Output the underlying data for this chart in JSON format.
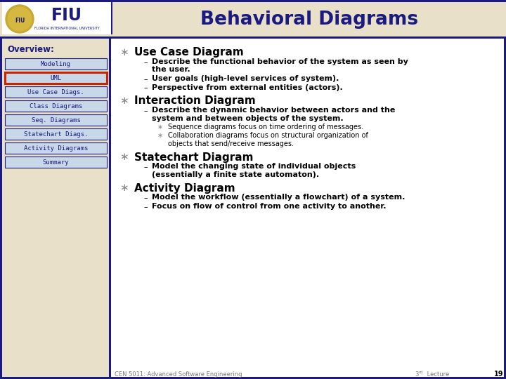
{
  "title": "Behavioral Diagrams",
  "title_color": "#1a1a80",
  "header_bg_color": "#e8e0c8",
  "header_border_color": "#1a1a80",
  "slide_bg_color": "#ffffff",
  "left_panel_bg": "#e8e0c8",
  "left_panel_border": "#1a1a80",
  "overview_label": "Overview:",
  "nav_buttons": [
    "Modeling",
    "UML",
    "Use Case Diags.",
    "Class Diagrams",
    "Seq. Diagrams",
    "Statechart Diags.",
    "Activity Diagrams",
    "Summary"
  ],
  "active_button": "UML",
  "active_button_border": "#cc2200",
  "button_bg_top": "#c8d8e8",
  "button_bg_bot": "#a0b8d0",
  "button_text_color": "#1a1a80",
  "content_bg": "#ffffff",
  "content_sections": [
    {
      "heading": "Use Case Diagram",
      "items": [
        {
          "level": 1,
          "text": "Describe the functional behavior of the system as seen by\nthe user."
        },
        {
          "level": 1,
          "text": "User goals (high-level services of system)."
        },
        {
          "level": 1,
          "text": "Perspective from external entities (actors)."
        }
      ]
    },
    {
      "heading": "Interaction Diagram",
      "items": [
        {
          "level": 1,
          "text": "Describe the dynamic behavior between actors and the\nsystem and between objects of the system."
        },
        {
          "level": 2,
          "text": "Sequence diagrams focus on time ordering of messages."
        },
        {
          "level": 2,
          "text": "Collaboration diagrams focus on structural organization of\nobjects that send/receive messages."
        }
      ]
    },
    {
      "heading": "Statechart Diagram",
      "items": [
        {
          "level": 1,
          "text": "Model the changing state of individual objects\n(essentially a finite state automaton)."
        }
      ]
    },
    {
      "heading": "Activity Diagram",
      "items": [
        {
          "level": 1,
          "text": "Model the workflow (essentially a flowchart) of a system."
        },
        {
          "level": 1,
          "text": "Focus on flow of control from one activity to another."
        }
      ]
    }
  ],
  "footer_left": "CEN 5011: Advanced Software Engineering",
  "footer_right": "3rd Lecture",
  "footer_page": "19",
  "footer_color": "#777777"
}
